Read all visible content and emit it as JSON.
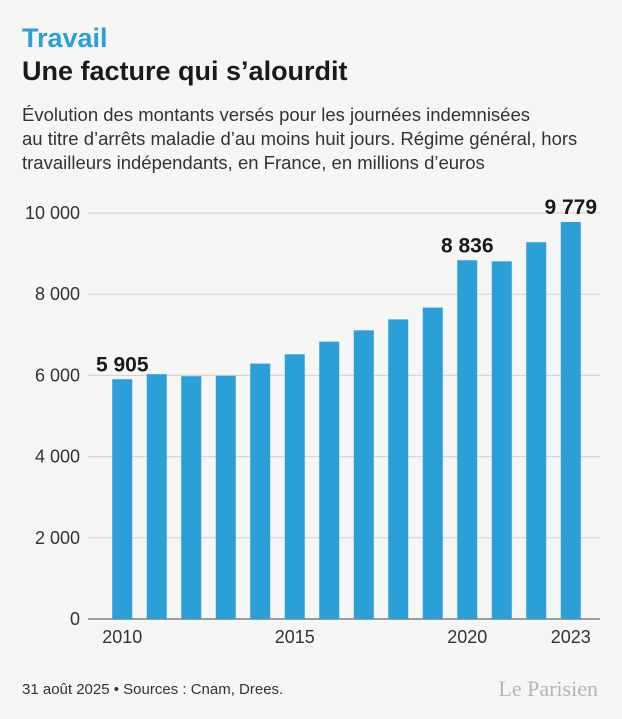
{
  "kicker": "Travail",
  "chart_data": {
    "type": "bar",
    "title": "Une facture qui s’alourdit",
    "subtitle": [
      "Évolution des montants versés pour les journées indemnisées",
      "au titre d’arrêts maladie d’au moins huit jours. Régime général, hors",
      "travailleurs indépendants, en France, en millions d’euros"
    ],
    "categories": [
      "2010",
      null,
      null,
      null,
      null,
      "2015",
      null,
      null,
      null,
      null,
      "2020",
      null,
      null,
      "2023"
    ],
    "values": [
      5905,
      6030,
      5980,
      5990,
      6290,
      6520,
      6830,
      7110,
      7380,
      7670,
      8836,
      8810,
      9280,
      9779
    ],
    "value_labels": [
      "5 905",
      null,
      null,
      null,
      null,
      null,
      null,
      null,
      null,
      null,
      "8 836",
      null,
      null,
      "9 779"
    ],
    "color": "#2a9fd8",
    "ylim": [
      0,
      10000
    ],
    "yticks": [
      0,
      {
        "value": 2000,
        "label": "2 000"
      },
      {
        "value": 4000,
        "label": "4 000"
      },
      {
        "value": 6000,
        "label": "6 000"
      },
      {
        "value": 8000,
        "label": "8 000"
      },
      {
        "value": 10000,
        "label": "10 000"
      }
    ],
    "grid": true
  },
  "footer": "31 août 2025 • Sources : Cnam, Drees.",
  "logo": "Le Parisien"
}
